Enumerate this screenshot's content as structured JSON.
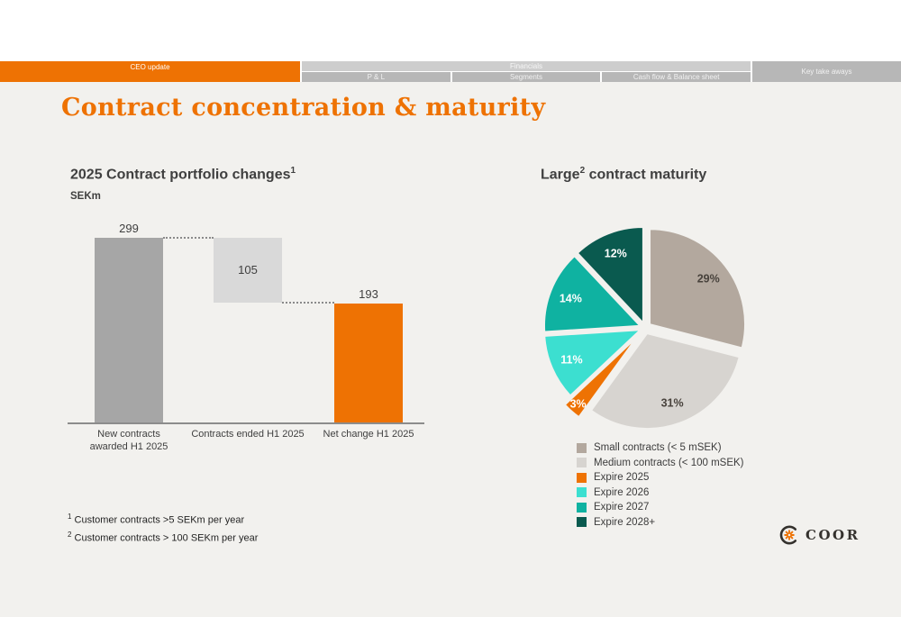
{
  "nav": {
    "ceo": {
      "label": "CEO update"
    },
    "financials": {
      "label": "Financials"
    },
    "key_take_aways": {
      "label": "Key take aways"
    },
    "sub_tabs": [
      {
        "label": "P & L"
      },
      {
        "label": "Segments"
      },
      {
        "label": "Cash flow & Balance sheet"
      }
    ]
  },
  "title": "Contract concentration & maturity",
  "footnotes": [
    {
      "sup": "1",
      "text": " Customer contracts >5 SEKm per year"
    },
    {
      "sup": "2",
      "text": " Customer contracts > 100 SEKm per year"
    }
  ],
  "logo": {
    "text": "COOR"
  },
  "colors": {
    "accent_orange": "#ee7203",
    "bar_gray": "#a6a6a6",
    "bar_light_gray": "#d9d9d9",
    "heading_gray": "#3f3f3f"
  },
  "chart_data": [
    {
      "type": "waterfall",
      "title": "2025 Contract portfolio changes",
      "title_sup": "1",
      "unit": "SEKm",
      "ymax": 299,
      "bars": [
        {
          "label": "New contracts\nawarded H1 2025",
          "value": 299,
          "base": 0,
          "color": "#a6a6a6",
          "value_label": "299",
          "label_position": "above"
        },
        {
          "label": "Contracts ended H1 2025",
          "value": 105,
          "base": 194,
          "color": "#d9d9d9",
          "value_label": "105",
          "label_position": "inside"
        },
        {
          "label": "Net change H1 2025",
          "value": 193,
          "base": 0,
          "color": "#ee7203",
          "value_label": "193",
          "label_position": "above"
        }
      ],
      "connectors": [
        {
          "from": 0,
          "to": 1,
          "level": 299
        },
        {
          "from": 1,
          "to": 2,
          "level": 194
        }
      ]
    },
    {
      "type": "pie",
      "title_pre": "Large",
      "title_sup": "2",
      "title_post": " contract maturity",
      "start_angle_deg": 0,
      "slices": [
        {
          "legend": "Small contracts (< 5 mSEK)",
          "pct": 29,
          "color": "#b3a89e",
          "label": "29%",
          "label_color": "#48423c",
          "explode": 7
        },
        {
          "legend": "Medium contracts (< 100 mSEK)",
          "pct": 31,
          "color": "#d7d4d0",
          "label": "31%",
          "label_color": "#48423c",
          "explode": 7
        },
        {
          "legend": "Expire 2025",
          "pct": 3,
          "color": "#ee7203",
          "label": "3%",
          "label_color": "#ffffff",
          "explode": 18
        },
        {
          "legend": "Expire 2026",
          "pct": 11,
          "color": "#3cdfd0",
          "label": "11%",
          "label_color": "#ffffff",
          "explode": 7
        },
        {
          "legend": "Expire 2027",
          "pct": 14,
          "color": "#0fb2a1",
          "label": "14%",
          "label_color": "#ffffff",
          "explode": 7
        },
        {
          "legend": "Expire 2028+",
          "pct": 12,
          "color": "#0a5a4f",
          "label": "12%",
          "label_color": "#ffffff",
          "explode": 7
        }
      ]
    }
  ]
}
